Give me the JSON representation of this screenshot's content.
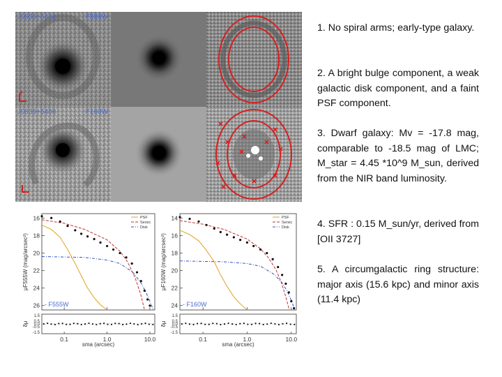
{
  "image_grid": {
    "top_left_label": "J0839+5406",
    "top_right_label": "F555W",
    "bottom_left_label": "J0839+5406",
    "bottom_right_label": "F160W"
  },
  "text_points": [
    "1.  No  spiral  arms;  early-type galaxy.",
    "2.  A bright bulge component, a weak galactic disk component, and a faint PSF component.",
    "3.  Dwarf  galaxy:  Mv  =  -17.8 mag,  comparable  to  -18.5 mag  of  LMC;  M_star  =  4.45 *10^9  M_sun,  derived  from the  NIR  band  luminosity.",
    "4.  SFR  :  0.15  M_sun/yr, derived  from  [OII  3727]",
    "5.  A circumgalactic ring structure:  major  axis  (15.6 kpc)  and  minor  axis  (11.4 kpc)"
  ],
  "colors": {
    "ring": "#d62020",
    "psf_curve": "#e0a020",
    "sersic_curve": "#c03030",
    "disk_curve": "#3050c0",
    "filter_label": "#4a6ad0"
  },
  "chart_data": [
    {
      "type": "line",
      "filter_label": "F555W",
      "legend": [
        "PSF",
        "Sersic",
        "Disk"
      ],
      "xlabel": "sma (arcsec)",
      "ylabel": "μF555W (mag/arcsec²)",
      "residual_ylabel": "δμ",
      "x_ticks": [
        "0.1",
        "1.0",
        "10.0"
      ],
      "y_ticks": [
        "16",
        "18",
        "20",
        "22",
        "24",
        "26"
      ],
      "residual_ticks": [
        "-1.5",
        "-0.5",
        "0.0",
        "0.5",
        "1.5"
      ],
      "xlim": [
        0.03,
        13
      ],
      "ylim": [
        26.5,
        15.5
      ],
      "series": [
        {
          "name": "PSF",
          "x": [
            0.03,
            0.05,
            0.08,
            0.12,
            0.18,
            0.25,
            0.35,
            0.5,
            0.7,
            1.0
          ],
          "values": [
            16.8,
            17.3,
            18.2,
            19.6,
            21.2,
            22.6,
            24.0,
            25.1,
            25.9,
            26.5
          ]
        },
        {
          "name": "Sersic",
          "x": [
            0.03,
            0.1,
            0.3,
            1.0,
            2.0,
            3.0,
            4.5,
            6.0,
            7.5
          ],
          "values": [
            16.2,
            16.6,
            17.3,
            18.5,
            19.8,
            21.0,
            22.8,
            24.6,
            26.5
          ]
        },
        {
          "name": "Disk",
          "x": [
            0.03,
            0.3,
            1.0,
            2.0,
            4.0,
            6.0,
            8.0,
            10.0,
            12.0
          ],
          "values": [
            20.4,
            20.5,
            20.8,
            21.2,
            22.2,
            23.3,
            24.4,
            25.5,
            26.5
          ]
        },
        {
          "name": "Data",
          "x": [
            0.03,
            0.05,
            0.08,
            0.12,
            0.18,
            0.25,
            0.35,
            0.5,
            0.7,
            1.0,
            1.4,
            2.0,
            2.8,
            3.8,
            5.0,
            6.2,
            7.5,
            8.8,
            10.0
          ],
          "values": [
            15.8,
            16.0,
            16.4,
            16.9,
            17.4,
            17.8,
            18.1,
            18.4,
            18.8,
            19.2,
            19.6,
            20.0,
            20.5,
            21.2,
            22.2,
            23.2,
            24.3,
            25.3,
            26.0
          ]
        }
      ]
    },
    {
      "type": "line",
      "filter_label": "F160W",
      "legend": [
        "PSF",
        "Sersic",
        "Disk"
      ],
      "xlabel": "sma (arcsec)",
      "ylabel": "μF160W (mag/arcsec²)",
      "residual_ylabel": "δμ",
      "x_ticks": [
        "0.1",
        "1.0",
        "10.0"
      ],
      "y_ticks": [
        "14",
        "16",
        "18",
        "20",
        "22",
        "24"
      ],
      "residual_ticks": [
        "-1.5",
        "-0.5",
        "0.0",
        "0.5",
        "1.5"
      ],
      "xlim": [
        0.03,
        13
      ],
      "ylim": [
        24.5,
        13.5
      ],
      "series": [
        {
          "name": "PSF",
          "x": [
            0.03,
            0.05,
            0.08,
            0.12,
            0.18,
            0.25,
            0.35,
            0.5,
            0.7,
            1.0
          ],
          "values": [
            15.4,
            15.9,
            16.6,
            17.7,
            19.0,
            20.5,
            21.8,
            23.0,
            23.8,
            24.5
          ]
        },
        {
          "name": "Sersic",
          "x": [
            0.03,
            0.1,
            0.3,
            1.0,
            2.0,
            3.0,
            4.5,
            6.0,
            7.5,
            9.0
          ],
          "values": [
            14.3,
            14.7,
            15.3,
            16.4,
            17.5,
            18.5,
            19.9,
            21.4,
            23.0,
            24.5
          ]
        },
        {
          "name": "Disk",
          "x": [
            0.03,
            0.3,
            1.0,
            2.0,
            4.0,
            6.0,
            8.0,
            10.0,
            12.0
          ],
          "values": [
            18.9,
            19.0,
            19.2,
            19.5,
            20.4,
            21.3,
            22.3,
            23.4,
            24.5
          ]
        },
        {
          "name": "Data",
          "x": [
            0.03,
            0.05,
            0.08,
            0.12,
            0.18,
            0.25,
            0.35,
            0.5,
            0.7,
            1.0,
            1.4,
            2.0,
            2.8,
            3.8,
            5.0,
            6.2,
            7.5,
            8.8,
            10.0,
            11.5
          ],
          "values": [
            13.9,
            14.1,
            14.4,
            14.8,
            15.2,
            15.6,
            15.9,
            16.2,
            16.5,
            16.8,
            17.2,
            17.6,
            18.0,
            18.7,
            19.6,
            20.5,
            21.5,
            22.5,
            23.5,
            24.3
          ]
        }
      ]
    }
  ]
}
